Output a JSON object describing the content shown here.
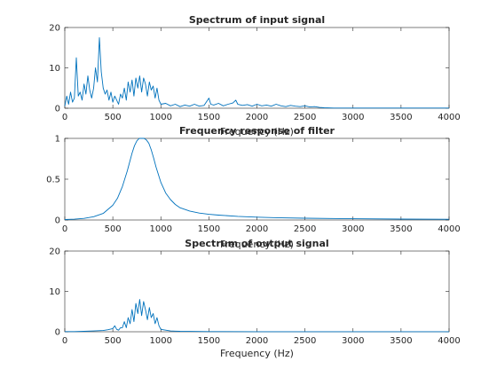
{
  "chart_data": [
    {
      "type": "line",
      "title": "Spectrum of input signal",
      "xlabel": "",
      "overlay_label": "",
      "xlim": [
        0,
        4000
      ],
      "ylim": [
        0,
        20
      ],
      "x_ticks": [
        "0",
        "500",
        "1000",
        "1500",
        "2000",
        "2500",
        "3000",
        "3500",
        "4000"
      ],
      "y_ticks": [
        "0",
        "10",
        "20"
      ],
      "color": "#0072BD",
      "series": [
        {
          "values_description_x": "Hz",
          "x": [
            0,
            20,
            40,
            60,
            80,
            100,
            120,
            140,
            160,
            180,
            200,
            220,
            240,
            260,
            280,
            300,
            320,
            340,
            360,
            380,
            400,
            420,
            440,
            460,
            480,
            500,
            520,
            540,
            560,
            580,
            600,
            620,
            640,
            660,
            680,
            700,
            720,
            740,
            760,
            780,
            800,
            820,
            840,
            860,
            880,
            900,
            920,
            940,
            960,
            980,
            1000,
            1050,
            1100,
            1150,
            1200,
            1250,
            1300,
            1350,
            1400,
            1450,
            1500,
            1520,
            1550,
            1600,
            1650,
            1700,
            1750,
            1780,
            1800,
            1850,
            1900,
            1950,
            2000,
            2050,
            2100,
            2150,
            2200,
            2250,
            2300,
            2350,
            2400,
            2450,
            2500,
            2550,
            2600,
            2650,
            2700,
            2800,
            2900,
            3000,
            3200,
            3400,
            3600,
            3800,
            4000
          ],
          "y": [
            0.5,
            3.0,
            1.0,
            4.0,
            1.5,
            2.5,
            12.5,
            3.0,
            4.0,
            2.0,
            6.0,
            3.5,
            8.0,
            4.5,
            2.5,
            5.0,
            10.0,
            6.5,
            17.5,
            9.0,
            5.0,
            3.5,
            4.5,
            2.0,
            4.0,
            1.5,
            3.0,
            2.0,
            1.0,
            3.5,
            2.5,
            5.0,
            2.0,
            6.5,
            4.0,
            7.0,
            3.0,
            7.5,
            5.0,
            8.0,
            4.0,
            7.5,
            6.0,
            3.0,
            6.5,
            4.5,
            5.5,
            2.5,
            5.0,
            2.0,
            1.0,
            1.2,
            0.6,
            1.0,
            0.4,
            0.8,
            0.5,
            1.0,
            0.5,
            0.7,
            2.5,
            1.0,
            0.8,
            1.2,
            0.6,
            1.0,
            1.3,
            2.0,
            1.0,
            0.7,
            0.9,
            0.5,
            1.0,
            0.6,
            0.8,
            0.5,
            1.0,
            0.6,
            0.4,
            0.7,
            0.5,
            0.4,
            0.6,
            0.3,
            0.4,
            0.2,
            0.1,
            0.05,
            0.05,
            0.05,
            0.05,
            0.05,
            0.05,
            0.05,
            0.05
          ]
        }
      ]
    },
    {
      "type": "line",
      "title": "Frequency response of filter",
      "xlabel": "",
      "overlay_label": "Frequency (Hz)",
      "xlim": [
        0,
        4000
      ],
      "ylim": [
        0,
        1
      ],
      "x_ticks": [
        "0",
        "500",
        "1000",
        "1500",
        "2000",
        "2500",
        "3000",
        "3500",
        "4000"
      ],
      "y_ticks": [
        "0",
        "0.5",
        "1"
      ],
      "color": "#0072BD",
      "series": [
        {
          "x": [
            0,
            100,
            200,
            300,
            400,
            500,
            550,
            600,
            650,
            700,
            725,
            750,
            775,
            800,
            825,
            850,
            875,
            900,
            925,
            950,
            1000,
            1050,
            1100,
            1150,
            1200,
            1300,
            1400,
            1500,
            1600,
            1800,
            2000,
            2200,
            2500,
            3000,
            3500,
            4000
          ],
          "y": [
            0.005,
            0.01,
            0.02,
            0.04,
            0.08,
            0.18,
            0.27,
            0.41,
            0.6,
            0.82,
            0.91,
            0.97,
            1.0,
            1.0,
            1.0,
            0.98,
            0.94,
            0.86,
            0.76,
            0.65,
            0.46,
            0.33,
            0.25,
            0.19,
            0.15,
            0.11,
            0.085,
            0.07,
            0.06,
            0.045,
            0.035,
            0.028,
            0.022,
            0.015,
            0.011,
            0.009
          ]
        }
      ]
    },
    {
      "type": "line",
      "title": "Spectrum of output signal",
      "xlabel": "Frequency (Hz)",
      "overlay_label": "Frequency (Hz)",
      "xlim": [
        0,
        4000
      ],
      "ylim": [
        0,
        20
      ],
      "x_ticks": [
        "0",
        "500",
        "1000",
        "1500",
        "2000",
        "2500",
        "3000",
        "3500",
        "4000"
      ],
      "y_ticks": [
        "0",
        "10",
        "20"
      ],
      "color": "#0072BD",
      "series": [
        {
          "x": [
            0,
            100,
            200,
            300,
            400,
            450,
            500,
            520,
            540,
            560,
            580,
            600,
            620,
            640,
            660,
            680,
            700,
            720,
            740,
            760,
            780,
            800,
            820,
            840,
            860,
            880,
            900,
            920,
            940,
            960,
            980,
            1000,
            1050,
            1100,
            1150,
            1200,
            1300,
            1500,
            2000,
            2500,
            3000,
            3500,
            4000
          ],
          "y": [
            0.05,
            0.05,
            0.1,
            0.2,
            0.3,
            0.5,
            0.8,
            1.5,
            0.6,
            0.4,
            1.0,
            1.0,
            2.5,
            1.0,
            3.5,
            2.0,
            5.5,
            2.5,
            7.0,
            4.5,
            8.0,
            4.0,
            7.5,
            5.5,
            3.0,
            6.0,
            3.5,
            4.5,
            2.0,
            3.5,
            1.5,
            0.6,
            0.4,
            0.2,
            0.15,
            0.1,
            0.08,
            0.05,
            0.02,
            0.02,
            0.02,
            0.02,
            0.02
          ]
        }
      ]
    }
  ]
}
